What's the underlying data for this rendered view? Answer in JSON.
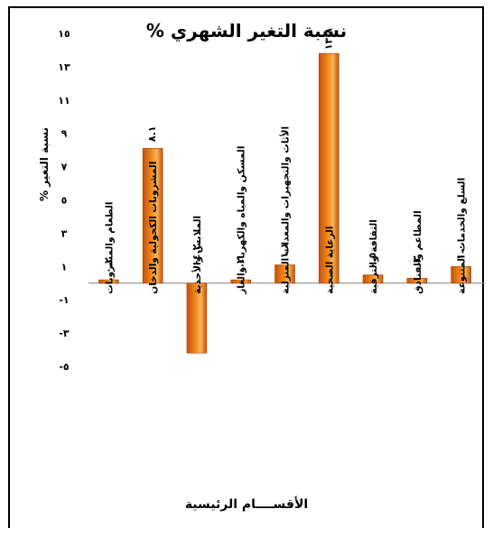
{
  "chart_data": {
    "type": "bar",
    "title": "نسبة التغير الشهري %",
    "xlabel": "الأقســــام الرئيسية",
    "ylabel": "نسبة التغير %",
    "ylim": [
      -5,
      15
    ],
    "yticks": [
      15,
      13,
      11,
      9,
      7,
      5,
      3,
      1,
      -1,
      -3,
      -5
    ],
    "ytick_labels": [
      "١٥",
      "١٣",
      "١١",
      "٩",
      "٧",
      "٥",
      "٣",
      "١",
      "-١",
      "-٣",
      "-٥"
    ],
    "categories": [
      "الطعام والمشروبات",
      "المشروبات الكحولية والدخان",
      "الملابس والأحذية",
      "المسكن والمياه والكهرباء والغاز",
      "الأثاث والتجهيزات والمعدات المنزلية",
      "الرعاية الصحية",
      "الثقافة والترفية",
      "المطاعم والفنادق",
      "السلع والخدمات المتنوعة"
    ],
    "values": [
      0.2,
      8.1,
      -4.2,
      0.2,
      1.1,
      13.8,
      0.5,
      0.3,
      1.0
    ],
    "data_labels": [
      "٠.٢",
      "٨.١",
      "-٤.٢",
      "٠.٢",
      "١.١",
      "١٣.٨",
      "٠.٥",
      "٠.٣",
      "١.٠"
    ],
    "grid": false,
    "legend": "none",
    "colors": {
      "bar_dark": "#c2510a",
      "bar_mid": "#f28a1e",
      "bar_light": "#f9b45a"
    }
  }
}
